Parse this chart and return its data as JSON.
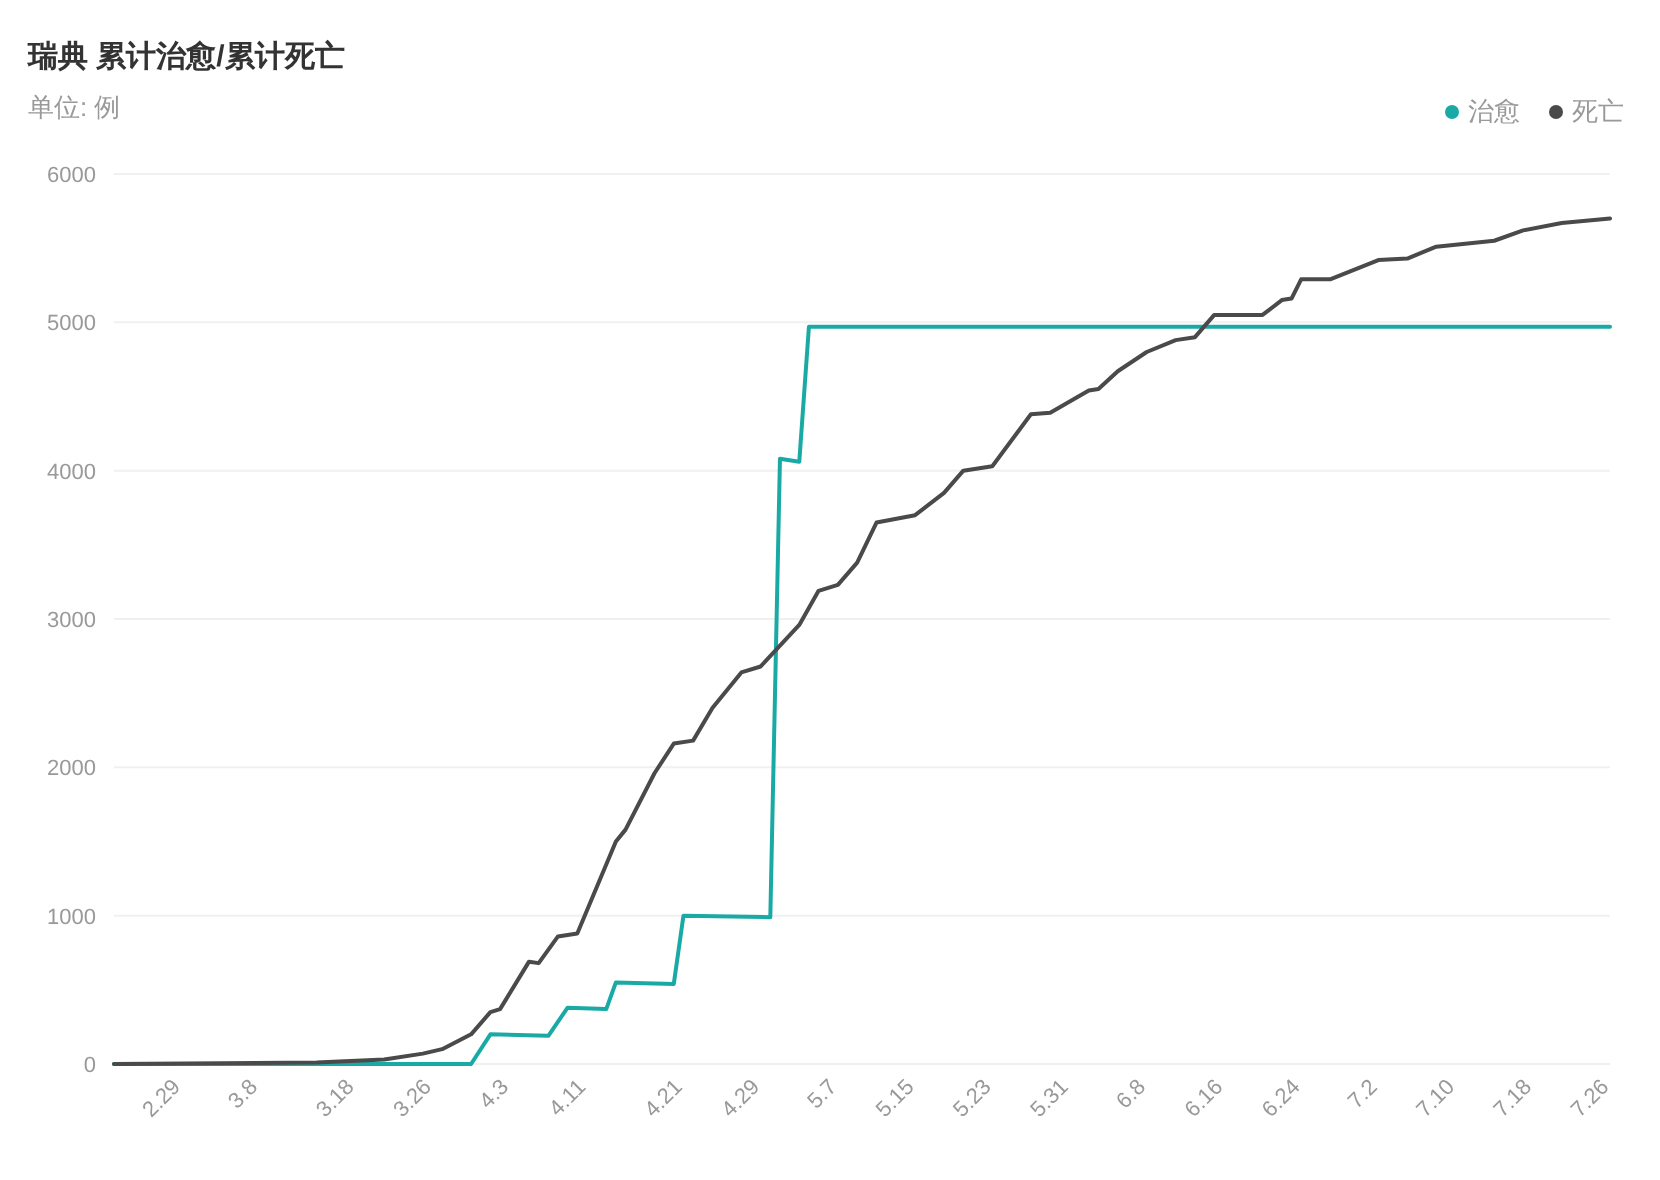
{
  "chart_data": {
    "type": "line",
    "title": "瑞典 累计治愈/累计死亡",
    "subtitle": "单位: 例",
    "xlim": [
      "--02-22",
      "--07-26"
    ],
    "ylim": [
      0,
      6000
    ],
    "yticks": [
      0,
      1000,
      2000,
      3000,
      4000,
      5000,
      6000
    ],
    "xticks": [
      {
        "value": "--02-29",
        "label": "2.29"
      },
      {
        "value": "--03-08",
        "label": "3.8"
      },
      {
        "value": "--03-18",
        "label": "3.18"
      },
      {
        "value": "--03-26",
        "label": "3.26"
      },
      {
        "value": "--04-03",
        "label": "4.3"
      },
      {
        "value": "--04-11",
        "label": "4.11"
      },
      {
        "value": "--04-21",
        "label": "4.21"
      },
      {
        "value": "--04-29",
        "label": "4.29"
      },
      {
        "value": "--05-07",
        "label": "5.7"
      },
      {
        "value": "--05-15",
        "label": "5.15"
      },
      {
        "value": "--05-23",
        "label": "5.23"
      },
      {
        "value": "--05-31",
        "label": "5.31"
      },
      {
        "value": "--06-08",
        "label": "6.8"
      },
      {
        "value": "--06-16",
        "label": "6.16"
      },
      {
        "value": "--06-24",
        "label": "6.24"
      },
      {
        "value": "--07-02",
        "label": "7.2"
      },
      {
        "value": "--07-10",
        "label": "7.10"
      },
      {
        "value": "--07-18",
        "label": "7.18"
      },
      {
        "value": "--07-26",
        "label": "7.26"
      }
    ],
    "grid": "y",
    "legend": "top right",
    "marker": "none",
    "line_style": "solid",
    "series": [
      {
        "name": "治愈",
        "color": "#1aaaa6",
        "x": [
          "--02-22",
          "--03-30",
          "--04-01",
          "--04-07",
          "--04-09",
          "--04-13",
          "--04-14",
          "--04-20",
          "--04-21",
          "--04-30",
          "--05-01",
          "--05-03",
          "--05-04",
          "--07-26"
        ],
        "values": [
          0,
          0,
          200,
          190,
          380,
          370,
          550,
          540,
          1000,
          990,
          4080,
          4060,
          4970,
          4970
        ]
      },
      {
        "name": "死亡",
        "color": "#4a4a4a",
        "x": [
          "--02-22",
          "--03-14",
          "--03-21",
          "--03-25",
          "--03-27",
          "--03-30",
          "--04-01",
          "--04-02",
          "--04-05",
          "--04-06",
          "--04-08",
          "--04-10",
          "--04-14",
          "--04-15",
          "--04-18",
          "--04-20",
          "--04-22",
          "--04-24",
          "--04-27",
          "--04-29",
          "--05-03",
          "--05-05",
          "--05-07",
          "--05-09",
          "--05-11",
          "--05-15",
          "--05-18",
          "--05-20",
          "--05-23",
          "--05-27",
          "--05-29",
          "--06-02",
          "--06-03",
          "--06-05",
          "--06-08",
          "--06-11",
          "--06-13",
          "--06-15",
          "--06-20",
          "--06-22",
          "--06-23",
          "--06-24",
          "--06-27",
          "--07-02",
          "--07-05",
          "--07-08",
          "--07-14",
          "--07-17",
          "--07-21",
          "--07-26"
        ],
        "values": [
          0,
          10,
          30,
          70,
          100,
          200,
          350,
          370,
          690,
          680,
          860,
          880,
          1500,
          1580,
          1960,
          2160,
          2180,
          2400,
          2640,
          2680,
          2960,
          3190,
          3230,
          3380,
          3650,
          3700,
          3850,
          4000,
          4030,
          4380,
          4390,
          4540,
          4550,
          4670,
          4800,
          4880,
          4900,
          5050,
          5050,
          5150,
          5160,
          5290,
          5290,
          5420,
          5430,
          5510,
          5550,
          5620,
          5670,
          5700
        ]
      }
    ]
  }
}
